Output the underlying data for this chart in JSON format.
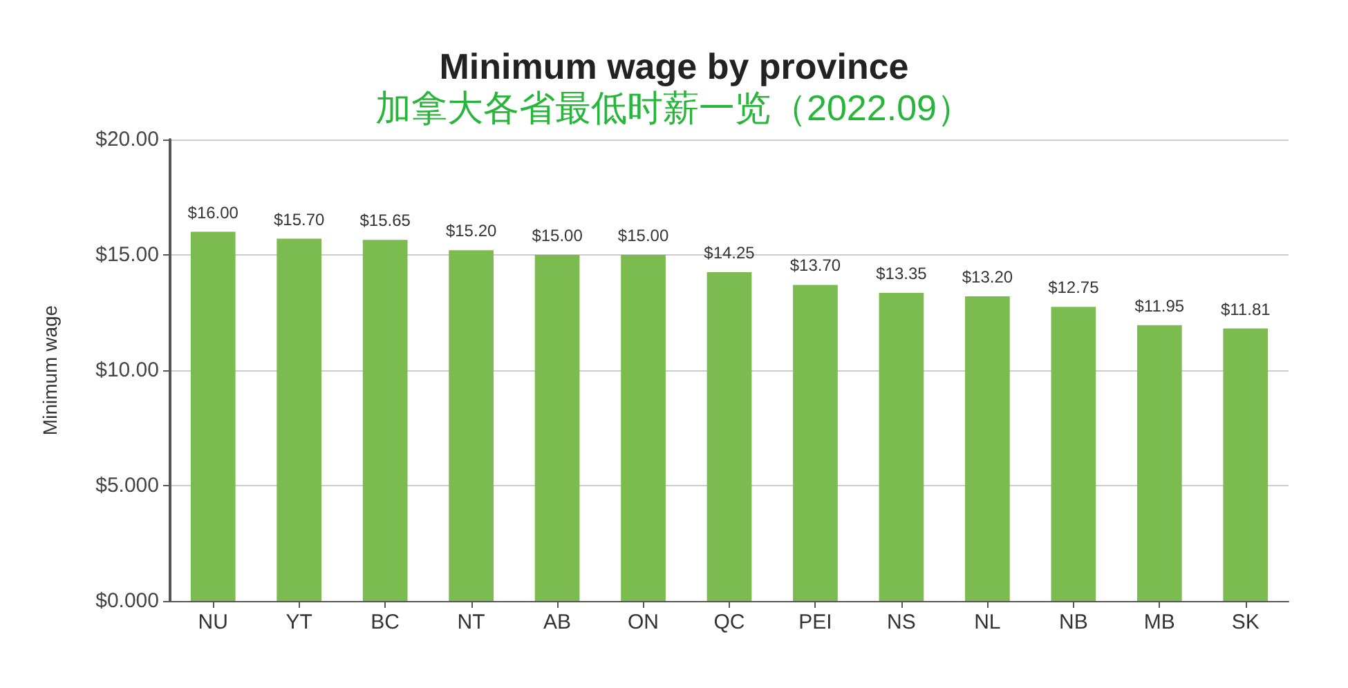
{
  "chart_data": {
    "type": "bar",
    "title": "Minimum wage by province",
    "subtitle": "加拿大各省最低时薪一览（2022.09）",
    "ylabel": "Minimum wage",
    "categories": [
      "NU",
      "YT",
      "BC",
      "NT",
      "AB",
      "ON",
      "QC",
      "PEI",
      "NS",
      "NL",
      "NB",
      "MB",
      "SK"
    ],
    "values": [
      16.0,
      15.7,
      15.65,
      15.2,
      15.0,
      15.0,
      14.25,
      13.7,
      13.35,
      13.2,
      12.75,
      11.95,
      11.81
    ],
    "value_labels": [
      "$16.00",
      "$15.70",
      "$15.65",
      "$15.20",
      "$15.00",
      "$15.00",
      "$14.25",
      "$13.70",
      "$13.35",
      "$13.20",
      "$12.75",
      "$11.95",
      "$11.81"
    ],
    "color": "#7cbb50",
    "ylim": [
      0,
      20
    ],
    "yticks": [
      {
        "value": 0,
        "label": "$0.000"
      },
      {
        "value": 5,
        "label": "$5.000"
      },
      {
        "value": 10,
        "label": "$10.00"
      },
      {
        "value": 15,
        "label": "$15.00"
      },
      {
        "value": 20,
        "label": "$20.00"
      }
    ],
    "grid": "y"
  }
}
